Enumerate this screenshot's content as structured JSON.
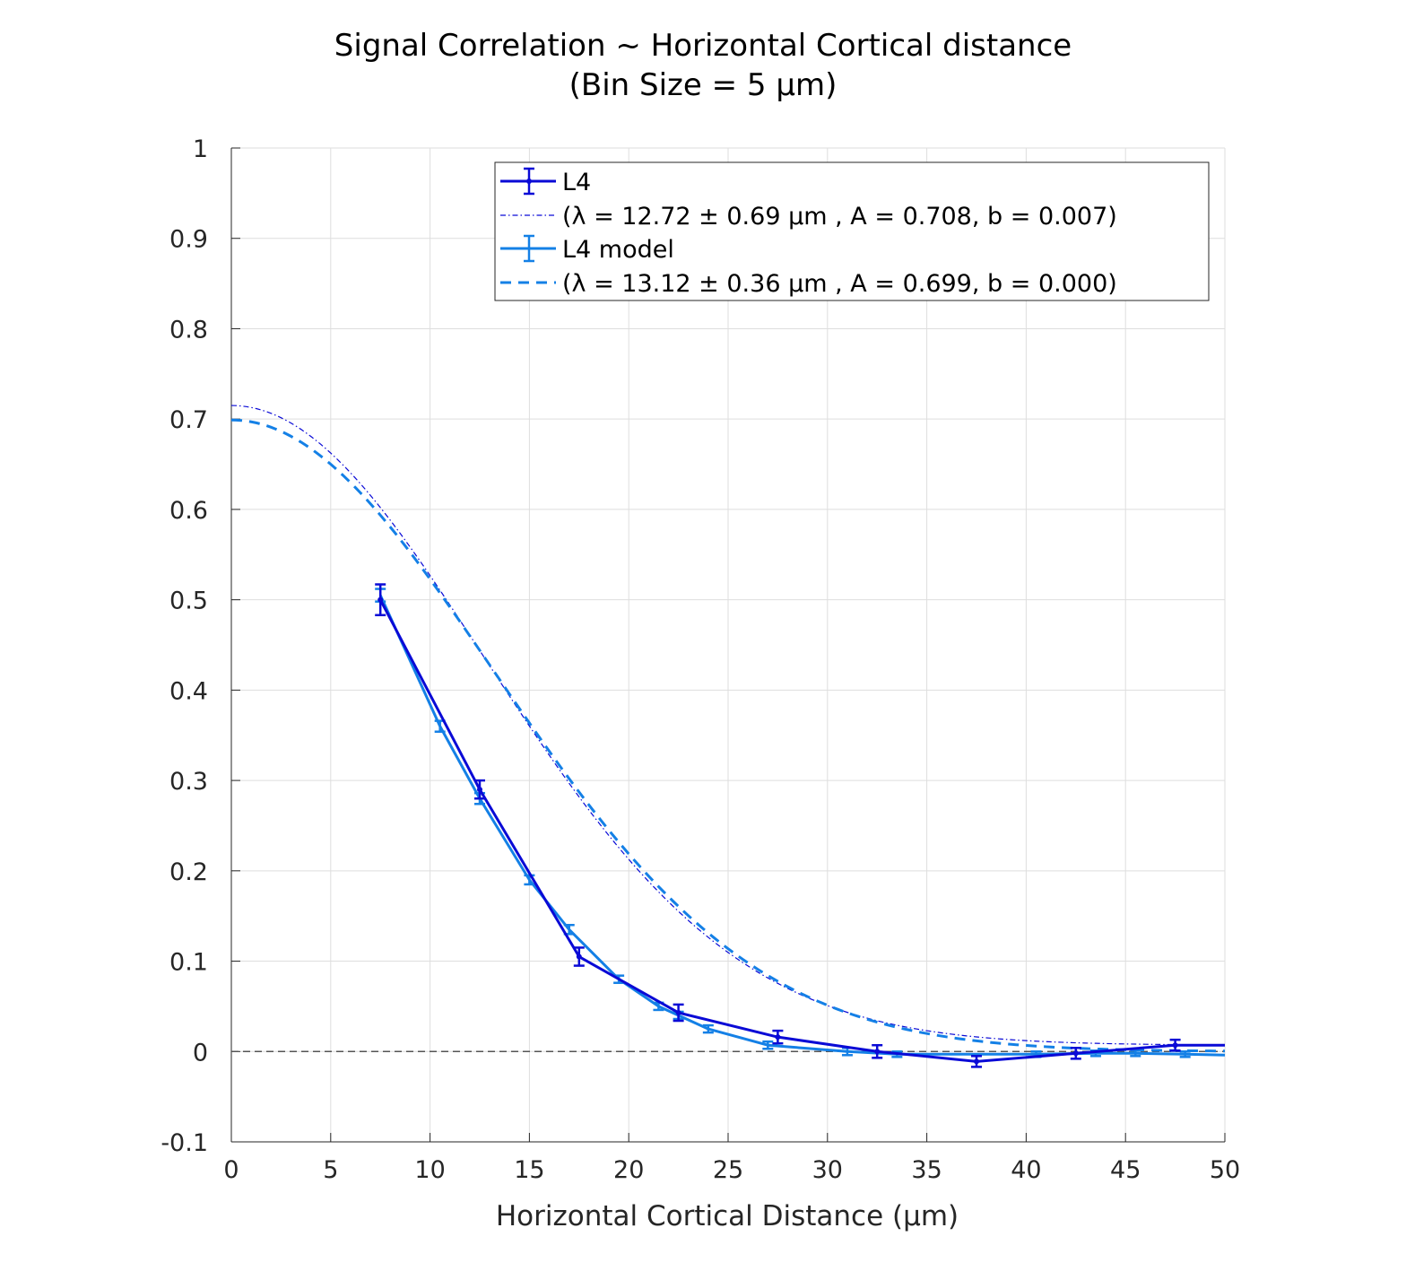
{
  "chart_data": {
    "type": "line",
    "title_line1": "Signal Correlation ~ Horizontal Cortical distance",
    "title_line2": "(Bin Size = 5 μm)",
    "xlabel": "Horizontal Cortical Distance (μm)",
    "ylabel": "",
    "xlim": [
      0,
      50
    ],
    "ylim": [
      -0.1,
      1
    ],
    "xticks": [
      0,
      5,
      10,
      15,
      20,
      25,
      30,
      35,
      40,
      45,
      50
    ],
    "yticks": [
      -0.1,
      0,
      0.1,
      0.2,
      0.3,
      0.4,
      0.5,
      0.6,
      0.7,
      0.8,
      0.9,
      1
    ],
    "ytick_labels": [
      "-0.1",
      "0",
      "0.1",
      "0.2",
      "0.3",
      "0.4",
      "0.5",
      "0.6",
      "0.7",
      "0.8",
      "0.9",
      "1"
    ],
    "grid": true,
    "legend_position": "top-right",
    "colors": {
      "l4": "#0a0ad6",
      "model": "#1480e6",
      "zero_line": "#555555",
      "grid": "#dedede"
    },
    "series": [
      {
        "name": "L4",
        "style": "solid-errorbar",
        "x": [
          7.5,
          12.5,
          17.5,
          22.5,
          27.5,
          32.5,
          37.5,
          42.5,
          47.5,
          50
        ],
        "y": [
          0.5,
          0.29,
          0.105,
          0.043,
          0.016,
          0.0,
          -0.011,
          -0.002,
          0.007,
          0.007
        ],
        "err": [
          0.017,
          0.01,
          0.01,
          0.009,
          0.007,
          0.007,
          0.006,
          0.006,
          0.006,
          0
        ]
      },
      {
        "name": "L4 model",
        "style": "solid-errorbar",
        "x": [
          7.5,
          10.5,
          12.5,
          15.0,
          17.0,
          19.5,
          21.5,
          22.5,
          24.0,
          27.0,
          31.0,
          33.5,
          40.5,
          43.5,
          45.5,
          48.0,
          50
        ],
        "y": [
          0.505,
          0.36,
          0.28,
          0.19,
          0.135,
          0.08,
          0.05,
          0.04,
          0.025,
          0.007,
          0.0,
          -0.003,
          -0.003,
          -0.002,
          -0.002,
          -0.003,
          -0.004
        ],
        "err": [
          0.007,
          0.006,
          0.006,
          0.005,
          0.005,
          0.004,
          0.004,
          0.004,
          0.004,
          0.004,
          0.004,
          0.003,
          0.003,
          0.003,
          0.003,
          0.003,
          0
        ]
      }
    ],
    "fits": [
      {
        "name": "(λ = 12.72 ± 0.69 μm , A = 0.708, b = 0.007)",
        "style": "dashdot",
        "model": "gaussian",
        "lambda": 12.72,
        "A": 0.708,
        "b": 0.007
      },
      {
        "name": "(λ = 13.12 ± 0.36 μm , A = 0.699, b = 0.000)",
        "style": "dashed",
        "model": "gaussian",
        "lambda": 13.12,
        "A": 0.699,
        "b": 0.0
      }
    ],
    "reference_line": {
      "y": 0,
      "style": "dashed"
    }
  }
}
